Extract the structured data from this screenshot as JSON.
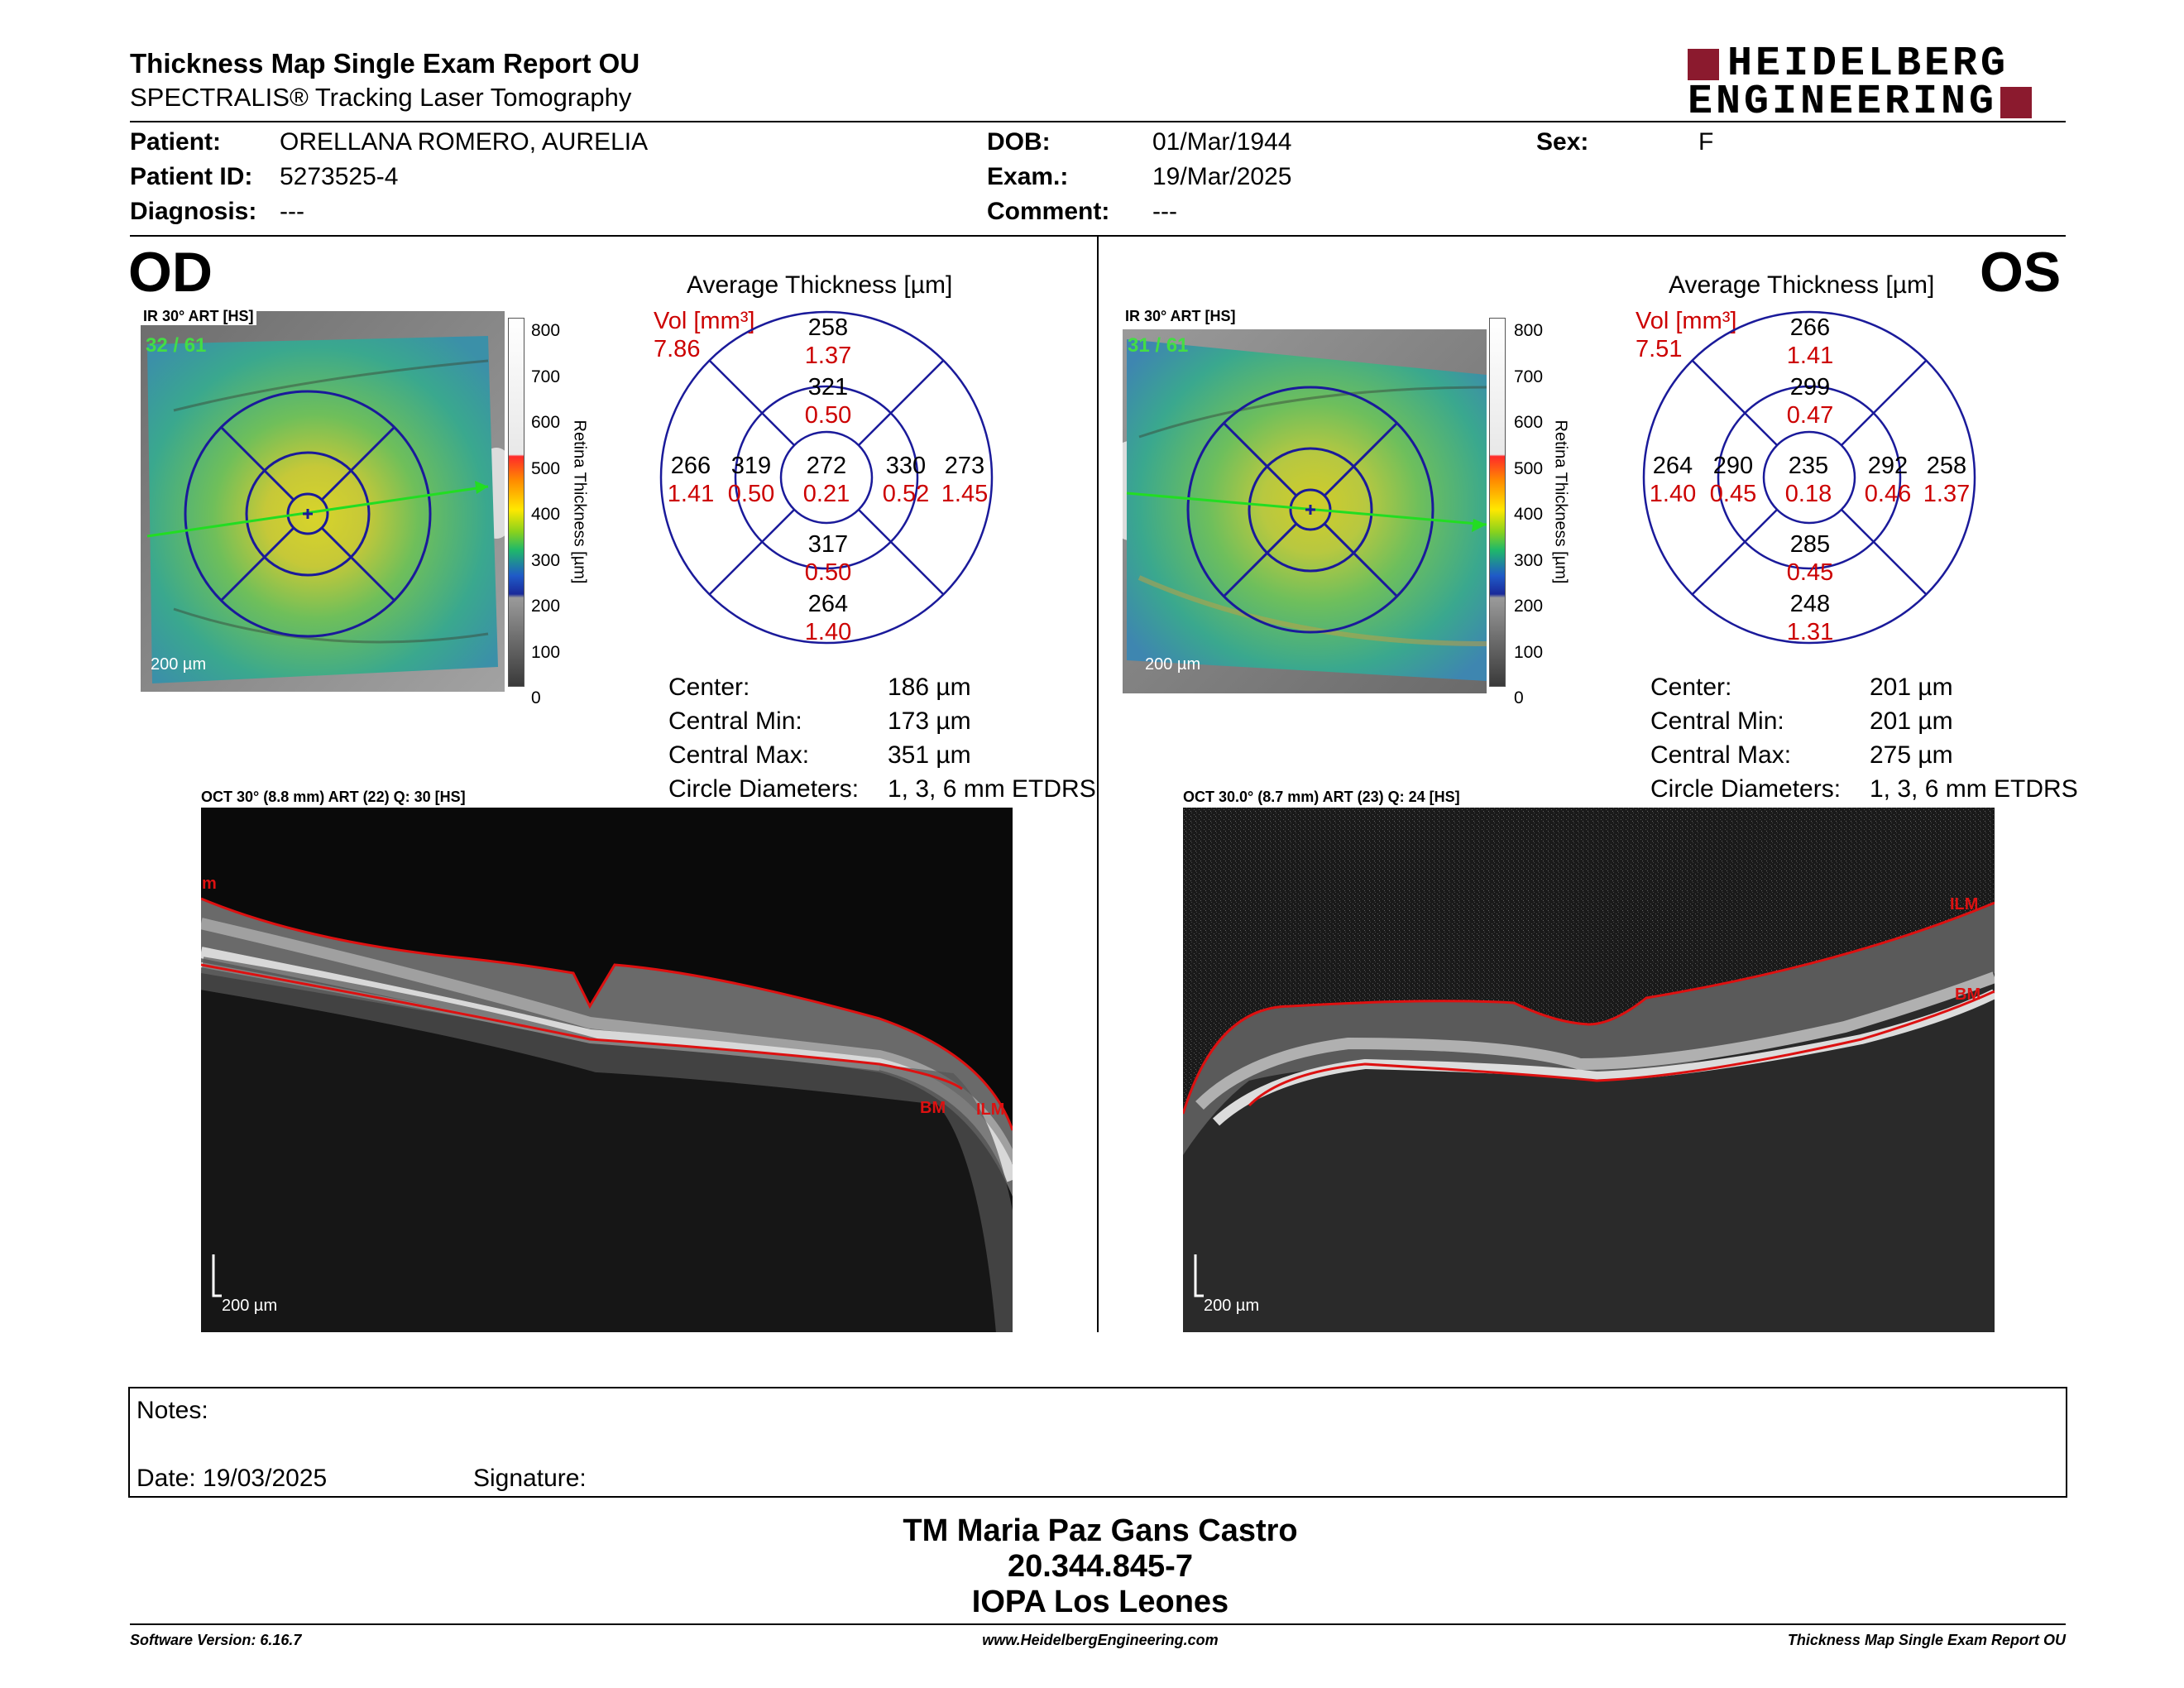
{
  "report": {
    "title": "Thickness Map Single Exam Report OU",
    "subtitle": "SPECTRALIS® Tracking Laser Tomography",
    "brand_line1": "HEIDELBERG",
    "brand_line2": "ENGINEERING",
    "brand_color": "#8b1a2e"
  },
  "patient": {
    "patient_label": "Patient:",
    "patient_value": "ORELLANA ROMERO, AURELIA",
    "id_label": "Patient ID:",
    "id_value": "5273525-4",
    "diagnosis_label": "Diagnosis:",
    "diagnosis_value": "---",
    "dob_label": "DOB:",
    "dob_value": "01/Mar/1944",
    "exam_label": "Exam.:",
    "exam_value": "19/Mar/2025",
    "comment_label": "Comment:",
    "comment_value": "---",
    "sex_label": "Sex:",
    "sex_value": "F"
  },
  "od": {
    "eye": "OD",
    "ir_label": "IR 30° ART [HS]",
    "ir_count": "32 / 61",
    "scale": "200 µm",
    "colorbar_title": "Retina Thickness [µm]",
    "colorbar_ticks": [
      "800",
      "700",
      "600",
      "500",
      "400",
      "300",
      "200",
      "100",
      "0"
    ],
    "avg_title": "Average Thickness [µm]",
    "vol_label": "Vol [mm³]",
    "vol_total": "7.86",
    "grid": {
      "sup_out": "258",
      "sup_out_v": "1.37",
      "sup_in": "321",
      "sup_in_v": "0.50",
      "nas_out": "266",
      "nas_out_v": "1.41",
      "nas_in": "319",
      "nas_in_v": "0.50",
      "center": "272",
      "center_v": "0.21",
      "tmp_in": "330",
      "tmp_in_v": "0.52",
      "tmp_out": "273",
      "tmp_out_v": "1.45",
      "inf_in": "317",
      "inf_in_v": "0.50",
      "inf_out": "264",
      "inf_out_v": "1.40"
    },
    "stats": {
      "center_label": "Center:",
      "center_value": "186 µm",
      "cmin_label": "Central Min:",
      "cmin_value": "173 µm",
      "cmax_label": "Central Max:",
      "cmax_value": "351 µm",
      "circ_label": "Circle Diameters:",
      "circ_value": "1, 3, 6 mm ETDRS"
    },
    "oct_label": "OCT 30° (8.8 mm) ART (22) Q: 30 [HS]",
    "oct_scale": "200 µm",
    "ilm": "ILM",
    "bm": "BM",
    "ilm_left": "m"
  },
  "os": {
    "eye": "OS",
    "ir_label": "IR 30° ART [HS]",
    "ir_count": "31 / 61",
    "scale": "200 µm",
    "colorbar_title": "Retina Thickness [µm]",
    "colorbar_ticks": [
      "800",
      "700",
      "600",
      "500",
      "400",
      "300",
      "200",
      "100",
      "0"
    ],
    "avg_title": "Average Thickness [µm]",
    "vol_label": "Vol [mm³]",
    "vol_total": "7.51",
    "grid": {
      "sup_out": "266",
      "sup_out_v": "1.41",
      "sup_in": "299",
      "sup_in_v": "0.47",
      "nas_out": "264",
      "nas_out_v": "1.40",
      "nas_in": "290",
      "nas_in_v": "0.45",
      "center": "235",
      "center_v": "0.18",
      "tmp_in": "292",
      "tmp_in_v": "0.46",
      "tmp_out": "258",
      "tmp_out_v": "1.37",
      "inf_in": "285",
      "inf_in_v": "0.45",
      "inf_out": "248",
      "inf_out_v": "1.31"
    },
    "stats": {
      "center_label": "Center:",
      "center_value": "201 µm",
      "cmin_label": "Central Min:",
      "cmin_value": "201 µm",
      "cmax_label": "Central Max:",
      "cmax_value": "275 µm",
      "circ_label": "Circle Diameters:",
      "circ_value": "1, 3, 6 mm ETDRS"
    },
    "oct_label": "OCT 30.0° (8.7 mm) ART (23) Q: 24 [HS]",
    "oct_scale": "200 µm",
    "ilm": "ILM",
    "bm": "BM"
  },
  "notes": {
    "notes_label": "Notes:",
    "date_label": "Date: 19/03/2025",
    "signature_label": "Signature:"
  },
  "signer": {
    "name": "TM Maria Paz Gans Castro",
    "rut": "20.344.845-7",
    "institution": "IOPA Los Leones"
  },
  "footer": {
    "software": "Software Version: 6.16.7",
    "website": "www.HeidelbergEngineering.com",
    "report_name": "Thickness Map Single Exam Report OU"
  }
}
